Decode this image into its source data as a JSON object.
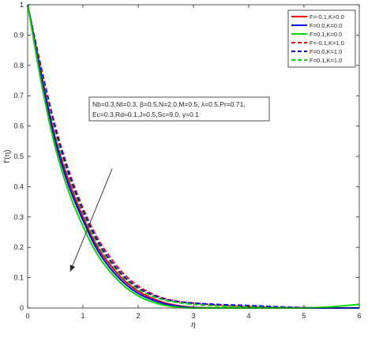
{
  "chart_data": {
    "type": "line",
    "title": "",
    "xlabel": "η",
    "ylabel": "f'(η)",
    "xlim": [
      0,
      6
    ],
    "ylim": [
      0,
      1
    ],
    "xticks": [
      "0",
      "1",
      "2",
      "3",
      "4",
      "5",
      "6"
    ],
    "yticks": [
      "0",
      "0.1",
      "0.2",
      "0.3",
      "0.4",
      "0.5",
      "0.6",
      "0.7",
      "0.8",
      "0.9",
      "1"
    ],
    "grid": false,
    "legend_position": "top-right",
    "parameter_box": {
      "line1": "Nb=0.3,Nt=0.3, β=0.5,N=2.0,M=0.5, λ=0.5,Pr=0.71,",
      "line2": "Ec=0.3,Rd=0.1,J=0.5,Sc=9.0, γ=0.1"
    },
    "arrow_annotation": {
      "from": [
        1.53,
        0.46
      ],
      "to": [
        0.77,
        0.12
      ]
    },
    "series": [
      {
        "name": "F=-0.1,K=0.0",
        "color": "#ff0000",
        "dash": "solid",
        "x": [
          0,
          0.25,
          0.5,
          0.75,
          1.0,
          1.25,
          1.5,
          1.75,
          2.0,
          2.25,
          2.5,
          2.75,
          3.0,
          3.5,
          4.0,
          4.5,
          5.0,
          5.5,
          6.0
        ],
        "y": [
          1.0,
          0.77,
          0.56,
          0.415,
          0.3,
          0.205,
          0.14,
          0.09,
          0.055,
          0.032,
          0.016,
          0.007,
          0.002,
          0.0,
          0.0,
          0.0,
          0.0,
          0.0,
          0.0
        ]
      },
      {
        "name": "F=0.0,K=0.0",
        "color": "#0000ff",
        "dash": "solid",
        "x": [
          0,
          0.25,
          0.5,
          0.75,
          1.0,
          1.25,
          1.5,
          1.75,
          2.0,
          2.25,
          2.5,
          2.75,
          3.0,
          3.5,
          4.0,
          4.5,
          5.0,
          5.5,
          6.0
        ],
        "y": [
          1.0,
          0.76,
          0.55,
          0.4,
          0.29,
          0.195,
          0.13,
          0.082,
          0.048,
          0.027,
          0.013,
          0.005,
          0.001,
          0.0,
          0.0,
          0.0,
          0.0,
          0.0,
          0.0
        ]
      },
      {
        "name": "F=0.1,K=0.0",
        "color": "#00dd00",
        "dash": "solid",
        "x": [
          0,
          0.25,
          0.5,
          0.75,
          1.0,
          1.25,
          1.5,
          1.75,
          2.0,
          2.25,
          2.5,
          2.75,
          3.0,
          3.5,
          4.0,
          4.5,
          5.0,
          5.5,
          6.0
        ],
        "y": [
          1.0,
          0.74,
          0.53,
          0.38,
          0.27,
          0.18,
          0.118,
          0.072,
          0.04,
          0.02,
          0.008,
          0.002,
          0.0,
          0.0,
          0.0,
          0.0,
          0.0,
          0.004,
          0.012
        ]
      },
      {
        "name": "F=-0.1,K=1.0",
        "color": "#ff0000",
        "dash": "dashed",
        "x": [
          0,
          0.25,
          0.5,
          0.75,
          1.0,
          1.25,
          1.5,
          1.75,
          2.0,
          2.25,
          2.5,
          2.75,
          3.0,
          3.5,
          4.0,
          4.5,
          5.0,
          5.5,
          6.0
        ],
        "y": [
          1.0,
          0.79,
          0.6,
          0.45,
          0.33,
          0.235,
          0.165,
          0.11,
          0.072,
          0.047,
          0.03,
          0.021,
          0.016,
          0.009,
          0.005,
          0.002,
          0.001,
          0.0,
          0.0
        ]
      },
      {
        "name": "F=0.0,K=1.0",
        "color": "#0000ff",
        "dash": "dashed",
        "x": [
          0,
          0.25,
          0.5,
          0.75,
          1.0,
          1.25,
          1.5,
          1.75,
          2.0,
          2.25,
          2.5,
          2.75,
          3.0,
          3.5,
          4.0,
          4.5,
          5.0,
          5.5,
          6.0
        ],
        "y": [
          1.0,
          0.785,
          0.59,
          0.44,
          0.32,
          0.225,
          0.155,
          0.102,
          0.066,
          0.043,
          0.028,
          0.02,
          0.016,
          0.011,
          0.008,
          0.004,
          0.001,
          0.0,
          0.0
        ]
      },
      {
        "name": "F=0.1,K=1.0",
        "color": "#00dd00",
        "dash": "dashed",
        "x": [
          0,
          0.25,
          0.5,
          0.75,
          1.0,
          1.25,
          1.5,
          1.75,
          2.0,
          2.25,
          2.5,
          2.75,
          3.0,
          3.5,
          4.0,
          4.5,
          5.0,
          5.5,
          6.0
        ],
        "y": [
          1.0,
          0.775,
          0.575,
          0.425,
          0.31,
          0.215,
          0.147,
          0.096,
          0.061,
          0.039,
          0.025,
          0.017,
          0.012,
          0.006,
          0.003,
          0.001,
          0.0,
          0.0,
          0.0
        ]
      }
    ]
  }
}
